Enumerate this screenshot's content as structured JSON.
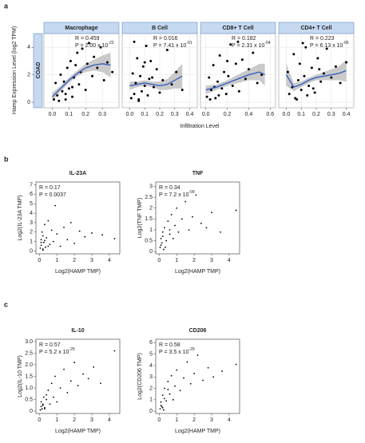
{
  "figure": {
    "labels": [
      "a",
      "b",
      "c"
    ],
    "row_label": "COAD",
    "ylabel": "Hamp Expression Level (log2 TPM)",
    "xlabel": "Infiltration Level"
  },
  "chart_data": [
    {
      "type": "scatter",
      "style": "strip",
      "title": "Macrophage",
      "xlim": [
        -0.05,
        0.4
      ],
      "ylim": [
        -0.4,
        5
      ],
      "xticks": [
        {
          "value": 0,
          "label": "0.0"
        },
        0.1,
        0.2,
        0.3
      ],
      "yticks": [
        0,
        2,
        4
      ],
      "grid": true,
      "color": "#000000",
      "fit_color": "#3b5fc0",
      "band_color": "#bdbdbd",
      "annotations": [
        {
          "text": "R = 0.459"
        },
        {
          "text": "P = 2.00 x 10",
          "sup": "-22"
        }
      ],
      "x": [
        0.01,
        0.02,
        0.03,
        0.05,
        0.06,
        0.07,
        0.08,
        0.09,
        0.1,
        0.11,
        0.12,
        0.13,
        0.14,
        0.15,
        0.16,
        0.17,
        0.18,
        0.2,
        0.21,
        0.22,
        0.24,
        0.25,
        0.27,
        0.29,
        0.31,
        0.33,
        0.36,
        0.04,
        0.08,
        0.12
      ],
      "values": [
        0.2,
        1.4,
        0.5,
        2.0,
        0.8,
        1.5,
        0.2,
        2.5,
        1.0,
        3.0,
        0.4,
        1.8,
        2.7,
        3.6,
        1.3,
        2.2,
        3.9,
        0.9,
        2.8,
        4.3,
        1.9,
        3.3,
        2.5,
        4.0,
        1.6,
        2.9,
        2.2,
        0.1,
        0.6,
        1.1
      ],
      "fit": {
        "x": [
          0,
          0.05,
          0.1,
          0.15,
          0.2,
          0.25,
          0.3,
          0.35
        ],
        "y": [
          0.4,
          1.0,
          1.6,
          2.1,
          2.5,
          2.7,
          2.8,
          2.7
        ],
        "lower": [
          0.1,
          0.8,
          1.4,
          1.9,
          2.2,
          2.3,
          2.2,
          1.8
        ],
        "upper": [
          0.7,
          1.2,
          1.8,
          2.3,
          2.8,
          3.1,
          3.4,
          3.6
        ]
      }
    },
    {
      "type": "scatter",
      "style": "strip",
      "title": "B Cell",
      "xlim": [
        -0.05,
        0.45
      ],
      "ylim": [
        -0.4,
        5
      ],
      "xticks": [
        {
          "value": 0,
          "label": "0.0"
        },
        0.1,
        0.2,
        0.3,
        0.4
      ],
      "yticks": [
        0,
        2,
        4
      ],
      "grid": true,
      "color": "#000000",
      "fit_color": "#3b5fc0",
      "band_color": "#bdbdbd",
      "annotations": [
        {
          "text": "R = 0.016"
        },
        {
          "text": "P = 7.41 x 10",
          "sup": "-01"
        }
      ],
      "x": [
        0.01,
        0.02,
        0.03,
        0.04,
        0.05,
        0.06,
        0.07,
        0.08,
        0.09,
        0.1,
        0.11,
        0.12,
        0.13,
        0.14,
        0.16,
        0.18,
        0.2,
        0.22,
        0.25,
        0.28,
        0.31,
        0.35,
        0.03,
        0.06,
        0.1,
        0.15
      ],
      "values": [
        0.3,
        2.1,
        0.6,
        1.4,
        3.2,
        0.2,
        1.9,
        0.8,
        2.6,
        1.2,
        4.1,
        0.5,
        1.7,
        3.0,
        1.1,
        2.4,
        0.7,
        1.6,
        3.8,
        1.3,
        2.2,
        0.9,
        4.4,
        0.1,
        2.9,
        1.8
      ],
      "fit": {
        "x": [
          0,
          0.05,
          0.1,
          0.15,
          0.2,
          0.25,
          0.3,
          0.35
        ],
        "y": [
          1.2,
          1.3,
          1.4,
          1.3,
          1.2,
          1.3,
          1.6,
          1.9
        ],
        "lower": [
          0.9,
          1.1,
          1.2,
          1.1,
          0.9,
          0.9,
          1.0,
          1.0
        ],
        "upper": [
          1.5,
          1.5,
          1.6,
          1.5,
          1.5,
          1.7,
          2.2,
          2.8
        ]
      }
    },
    {
      "type": "scatter",
      "style": "strip",
      "title": "CD8+ T Cell",
      "xlim": [
        -0.05,
        0.65
      ],
      "ylim": [
        -0.4,
        5
      ],
      "xticks": [
        {
          "value": 0,
          "label": "0.0"
        },
        0.2,
        0.4,
        0.6
      ],
      "yticks": [
        0,
        2,
        4
      ],
      "grid": true,
      "color": "#000000",
      "fit_color": "#3b5fc0",
      "band_color": "#bdbdbd",
      "annotations": [
        {
          "text": "R = 0.182"
        },
        {
          "text": "P = 2.31 x 10",
          "sup": "-04"
        }
      ],
      "x": [
        0.01,
        0.03,
        0.05,
        0.07,
        0.09,
        0.11,
        0.13,
        0.15,
        0.17,
        0.19,
        0.21,
        0.23,
        0.25,
        0.28,
        0.31,
        0.34,
        0.37,
        0.4,
        0.44,
        0.48,
        0.52,
        0.04,
        0.08,
        0.12,
        0.2,
        0.3
      ],
      "values": [
        0.4,
        1.8,
        0.9,
        2.7,
        0.3,
        1.5,
        3.4,
        1.0,
        2.2,
        0.6,
        1.9,
        4.2,
        1.2,
        2.8,
        0.8,
        3.1,
        1.7,
        2.4,
        3.6,
        1.4,
        2.0,
        0.2,
        1.1,
        0.5,
        3.0,
        4.4
      ],
      "fit": {
        "x": [
          0,
          0.1,
          0.2,
          0.3,
          0.4,
          0.5,
          0.55
        ],
        "y": [
          0.9,
          1.1,
          1.4,
          1.7,
          2.0,
          2.2,
          2.0
        ],
        "lower": [
          0.6,
          0.9,
          1.2,
          1.4,
          1.6,
          1.6,
          1.2
        ],
        "upper": [
          1.2,
          1.3,
          1.6,
          2.0,
          2.4,
          2.8,
          2.8
        ]
      }
    },
    {
      "type": "scatter",
      "style": "strip",
      "title": "CD4+ T Cell",
      "xlim": [
        -0.05,
        0.45
      ],
      "ylim": [
        -0.4,
        5
      ],
      "xticks": [
        {
          "value": 0,
          "label": "0.0"
        },
        0.1,
        0.2,
        0.3,
        0.4
      ],
      "yticks": [
        0,
        2,
        4
      ],
      "grid": true,
      "color": "#000000",
      "fit_color": "#3b5fc0",
      "band_color": "#bdbdbd",
      "annotations": [
        {
          "text": "R = 0.223"
        },
        {
          "text": "P = 6.13 x 10",
          "sup": "-06"
        }
      ],
      "x": [
        0.01,
        0.02,
        0.04,
        0.05,
        0.06,
        0.08,
        0.09,
        0.1,
        0.12,
        0.13,
        0.15,
        0.17,
        0.19,
        0.21,
        0.23,
        0.25,
        0.27,
        0.3,
        0.33,
        0.36,
        0.4,
        0.07,
        0.11,
        0.14,
        0.18,
        0.22
      ],
      "values": [
        2.2,
        0.6,
        1.1,
        3.5,
        0.3,
        1.6,
        2.8,
        0.9,
        1.9,
        4.0,
        1.2,
        2.5,
        0.7,
        3.2,
        1.5,
        2.1,
        3.9,
        1.8,
        2.6,
        1.4,
        2.9,
        0.2,
        4.3,
        0.5,
        1.0,
        2.4
      ],
      "fit": {
        "x": [
          0,
          0.05,
          0.1,
          0.15,
          0.2,
          0.25,
          0.3,
          0.35,
          0.4
        ],
        "y": [
          2.0,
          1.1,
          1.3,
          1.6,
          1.8,
          1.9,
          2.0,
          2.1,
          2.3
        ],
        "lower": [
          1.2,
          0.8,
          1.1,
          1.4,
          1.6,
          1.6,
          1.6,
          1.6,
          1.5
        ],
        "upper": [
          2.8,
          1.4,
          1.5,
          1.8,
          2.0,
          2.2,
          2.4,
          2.6,
          3.1
        ]
      }
    },
    {
      "type": "scatter",
      "style": "box",
      "title": "IL-23A",
      "xlabel": "Log2(HAMP TMP)",
      "ylabel": "Log2(IL-23A TMP)",
      "xlim": [
        -0.2,
        4.6
      ],
      "ylim": [
        -0.3,
        7.3
      ],
      "xticks": [
        0,
        1,
        2,
        3,
        4
      ],
      "yticks": [
        0,
        1,
        2,
        3,
        4,
        5,
        6,
        7
      ],
      "color": "#000000",
      "annotations": [
        {
          "text": "R = 0.17"
        },
        {
          "text": "P = 0.0037"
        }
      ],
      "x": [
        0.05,
        0.1,
        0.1,
        0.15,
        0.2,
        0.2,
        0.25,
        0.3,
        0.35,
        0.4,
        0.5,
        0.6,
        0.7,
        0.8,
        0.9,
        1.0,
        1.2,
        1.4,
        1.6,
        1.8,
        2.0,
        2.3,
        2.6,
        3.0,
        3.6,
        4.3,
        0.1,
        0.2,
        0.3,
        0.5
      ],
      "values": [
        0.3,
        1.2,
        0.6,
        2.0,
        0.1,
        1.6,
        0.9,
        2.8,
        0.4,
        1.4,
        3.2,
        0.7,
        2.2,
        1.0,
        4.8,
        1.8,
        0.5,
        2.5,
        1.2,
        3.0,
        0.8,
        2.1,
        1.5,
        1.9,
        1.7,
        1.3,
        0.9,
        0.2,
        1.1,
        0.5
      ]
    },
    {
      "type": "scatter",
      "style": "box",
      "title": "TNF",
      "xlabel": "Log2(HAMP TMP)",
      "ylabel": "Log2(TNF TMP)",
      "xlim": [
        -0.2,
        4.6
      ],
      "ylim": [
        -0.1,
        3.2
      ],
      "xticks": [
        0,
        1,
        2,
        3,
        4
      ],
      "yticks": [
        0,
        0.5,
        1,
        1.5,
        2,
        2.5,
        3
      ],
      "color": "#000000",
      "annotations": [
        {
          "text": "R = 0.34"
        },
        {
          "text": "P = 7.2 x 10",
          "sup": "-09"
        }
      ],
      "x": [
        0.05,
        0.1,
        0.15,
        0.2,
        0.25,
        0.3,
        0.4,
        0.5,
        0.6,
        0.7,
        0.8,
        0.9,
        1.0,
        1.1,
        1.3,
        1.5,
        1.7,
        1.9,
        2.1,
        2.4,
        2.7,
        3.0,
        3.5,
        4.4,
        0.1,
        0.2,
        0.35,
        0.6
      ],
      "values": [
        0.2,
        0.6,
        0.4,
        0.9,
        0.1,
        1.1,
        0.5,
        1.4,
        0.8,
        1.7,
        0.6,
        1.2,
        2.0,
        0.9,
        1.5,
        2.3,
        1.0,
        1.6,
        2.6,
        1.3,
        1.1,
        1.8,
        0.9,
        1.9,
        0.3,
        0.7,
        0.2,
        1.0
      ]
    },
    {
      "type": "scatter",
      "style": "box",
      "title": "IL-10",
      "xlabel": "Log2(HAMP TMP)",
      "ylabel": "Log2(IL-10 TMP)",
      "xlim": [
        -0.2,
        4.6
      ],
      "ylim": [
        -0.1,
        3.1
      ],
      "xticks": [
        0,
        1,
        2,
        3,
        4
      ],
      "yticks": [
        0,
        0.5,
        {
          "value": 1,
          "label": "1.0"
        },
        1.5,
        {
          "value": 2,
          "label": "2.0"
        },
        2.5,
        {
          "value": 3,
          "label": "3.0"
        }
      ],
      "color": "#000000",
      "annotations": [
        {
          "text": "R = 0.57"
        },
        {
          "text": "P = 5.2 x 10",
          "sup": "-25"
        }
      ],
      "x": [
        0.05,
        0.1,
        0.1,
        0.15,
        0.2,
        0.25,
        0.3,
        0.4,
        0.5,
        0.6,
        0.7,
        0.8,
        0.9,
        1.0,
        1.2,
        1.4,
        1.6,
        1.8,
        2.0,
        2.2,
        2.5,
        2.8,
        3.1,
        3.5,
        4.3,
        0.2,
        0.3,
        0.4
      ],
      "values": [
        0.05,
        0.2,
        0.4,
        0.1,
        0.3,
        0.6,
        0.15,
        0.5,
        0.9,
        0.3,
        1.2,
        0.6,
        1.5,
        0.4,
        1.0,
        1.8,
        0.8,
        1.3,
        2.1,
        1.1,
        1.6,
        1.4,
        1.9,
        1.2,
        2.6,
        0.25,
        0.1,
        0.7
      ]
    },
    {
      "type": "scatter",
      "style": "box",
      "title": "CD206",
      "xlabel": "Log2(HAMP TMP)",
      "ylabel": "Log2(CD206 TMP)",
      "xlim": [
        -0.2,
        4.6
      ],
      "ylim": [
        -0.2,
        6.3
      ],
      "xticks": [
        0,
        1,
        2,
        3,
        4
      ],
      "yticks": [
        0,
        1,
        2,
        3,
        4,
        5,
        6
      ],
      "color": "#000000",
      "annotations": [
        {
          "text": "R = 0.58"
        },
        {
          "text": "P = 3.5 x 10",
          "sup": "-29"
        }
      ],
      "x": [
        0.05,
        0.1,
        0.15,
        0.2,
        0.25,
        0.3,
        0.4,
        0.5,
        0.6,
        0.7,
        0.8,
        0.9,
        1.0,
        1.2,
        1.4,
        1.6,
        1.8,
        2.0,
        2.2,
        2.5,
        2.8,
        3.1,
        3.6,
        4.4,
        0.1,
        0.2,
        0.3,
        0.5
      ],
      "values": [
        0.2,
        0.8,
        0.4,
        1.4,
        0.1,
        2.0,
        0.9,
        2.6,
        1.5,
        3.1,
        1.0,
        2.2,
        3.6,
        1.8,
        2.9,
        4.3,
        2.4,
        3.3,
        4.9,
        2.7,
        3.8,
        3.0,
        3.5,
        4.1,
        0.5,
        0.3,
        1.1,
        1.9
      ]
    }
  ]
}
